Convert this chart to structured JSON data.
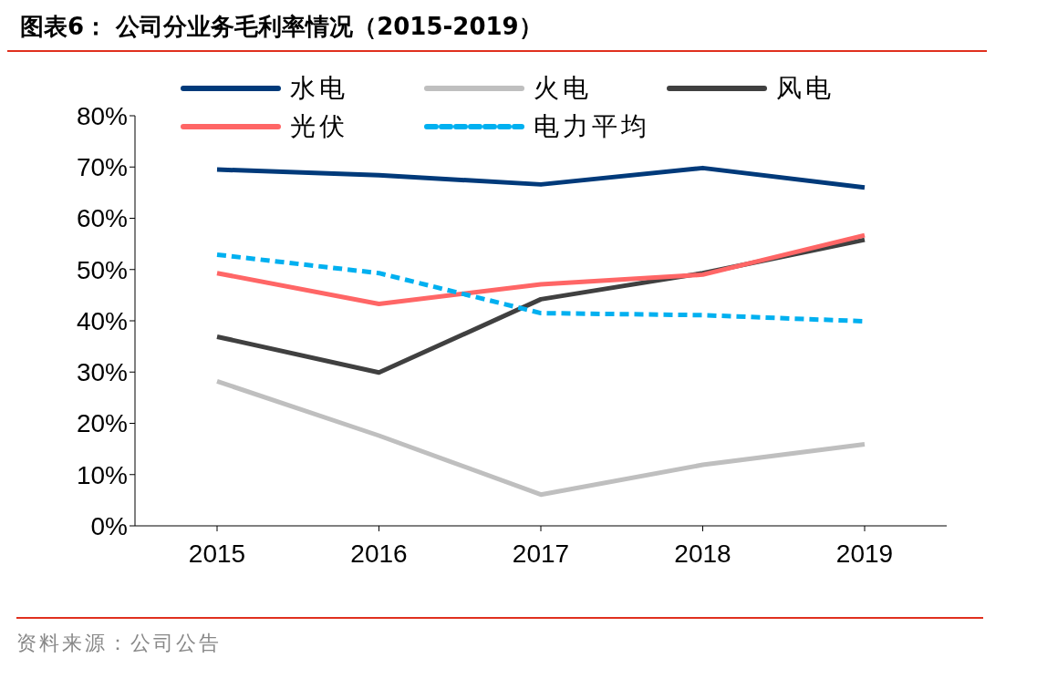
{
  "chart_data": {
    "type": "line",
    "title": "图表6：  公司分业务毛利率情况（2015-2019）",
    "categories": [
      "2015",
      "2016",
      "2017",
      "2018",
      "2019"
    ],
    "series": [
      {
        "name": "水电",
        "color": "#003a7a",
        "values": [
          69.5,
          68.4,
          66.6,
          69.8,
          66.0
        ]
      },
      {
        "name": "火电",
        "color": "#bfbfbf",
        "values": [
          28.2,
          17.6,
          6.1,
          11.9,
          15.9
        ]
      },
      {
        "name": "风电",
        "color": "#404040",
        "values": [
          36.9,
          29.9,
          44.2,
          49.3,
          55.8
        ]
      },
      {
        "name": "光伏",
        "color": "#ff6666",
        "values": [
          49.3,
          43.3,
          47.1,
          49.0,
          56.7
        ]
      },
      {
        "name": "电力平均",
        "color": "#00b0f0",
        "values": [
          52.9,
          49.3,
          41.5,
          41.1,
          39.9
        ],
        "line_style": "dashed"
      }
    ],
    "ylim": [
      0,
      80
    ],
    "yticks": [
      {
        "value": 0,
        "label": "0%"
      },
      {
        "value": 10,
        "label": "10%"
      },
      {
        "value": 20,
        "label": "20%"
      },
      {
        "value": 30,
        "label": "30%"
      },
      {
        "value": 40,
        "label": "40%"
      },
      {
        "value": 50,
        "label": "50%"
      },
      {
        "value": 60,
        "label": "60%"
      },
      {
        "value": 70,
        "label": "70%"
      },
      {
        "value": 80,
        "label": "80%"
      }
    ],
    "grid": false,
    "legend": "top",
    "marker": "none",
    "annotations": [
      "资料来源：公司公告"
    ]
  }
}
